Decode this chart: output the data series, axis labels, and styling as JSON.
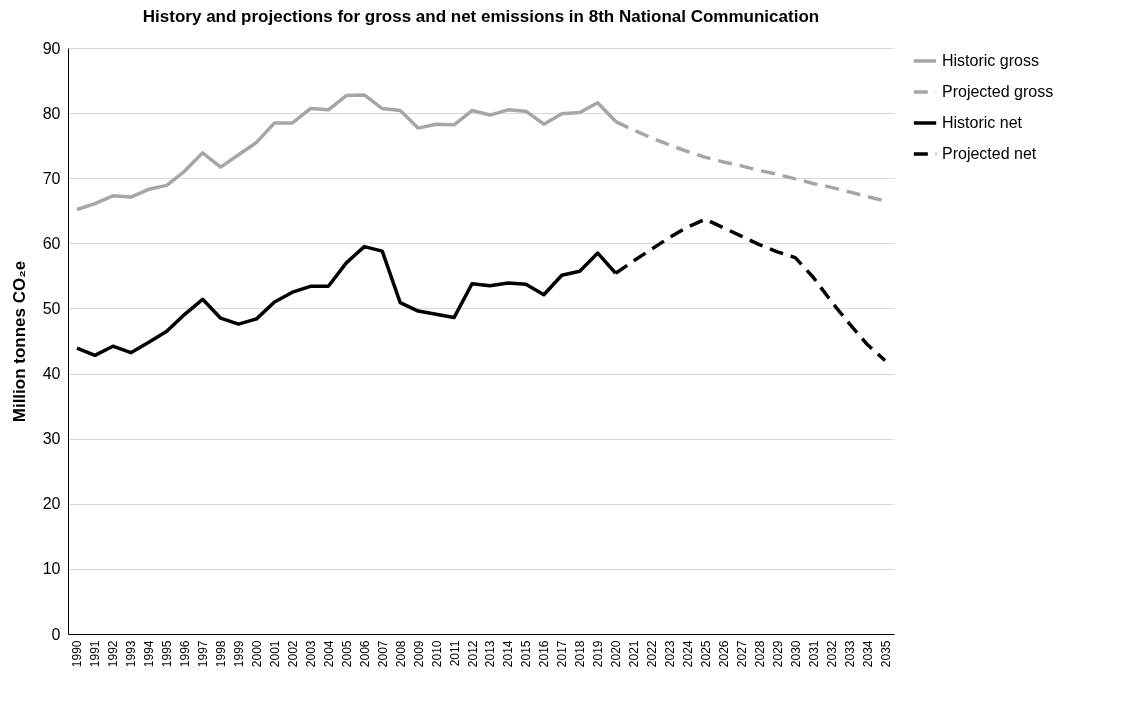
{
  "chart_data": {
    "type": "line",
    "title": "History and projections for gross and net emissions in 8th National Communication",
    "ylabel": "Million tonnes CO₂e",
    "categories": [
      "1990",
      "1991",
      "1992",
      "1993",
      "1994",
      "1995",
      "1996",
      "1997",
      "1998",
      "1999",
      "2000",
      "2001",
      "2002",
      "2003",
      "2004",
      "2005",
      "2006",
      "2007",
      "2008",
      "2009",
      "2010",
      "2011",
      "2012",
      "2013",
      "2014",
      "2015",
      "2016",
      "2017",
      "2018",
      "2019",
      "2020",
      "2021",
      "2022",
      "2023",
      "2024",
      "2025",
      "2026",
      "2027",
      "2028",
      "2029",
      "2030",
      "2031",
      "2032",
      "2033",
      "2034",
      "2035"
    ],
    "series": [
      {
        "name": "Historic gross",
        "color": "#a6a6a6",
        "line_style": "solid",
        "values": [
          65.2,
          66.1,
          67.3,
          67.1,
          68.3,
          68.9,
          71.1,
          73.9,
          71.7,
          73.6,
          75.5,
          78.5,
          78.5,
          80.7,
          80.5,
          82.7,
          82.8,
          80.7,
          80.4,
          77.7,
          78.3,
          78.2,
          80.4,
          79.7,
          80.5,
          80.3,
          78.3,
          79.9,
          80.1,
          81.6,
          78.7,
          null,
          null,
          null,
          null,
          null,
          null,
          null,
          null,
          null,
          null,
          null,
          null,
          null,
          null,
          null
        ]
      },
      {
        "name": "Projected gross",
        "color": "#a6a6a6",
        "line_style": "dashed",
        "values": [
          null,
          null,
          null,
          null,
          null,
          null,
          null,
          null,
          null,
          null,
          null,
          null,
          null,
          null,
          null,
          null,
          null,
          null,
          null,
          null,
          null,
          null,
          null,
          null,
          null,
          null,
          null,
          null,
          null,
          null,
          78.7,
          77.4,
          76.2,
          75.1,
          74.1,
          73.2,
          72.5,
          71.9,
          71.2,
          70.6,
          69.9,
          69.2,
          68.6,
          67.9,
          67.2,
          66.5
        ]
      },
      {
        "name": "Historic net",
        "color": "#000000",
        "line_style": "solid",
        "values": [
          43.9,
          42.8,
          44.2,
          43.2,
          44.8,
          46.5,
          49.1,
          51.4,
          48.5,
          47.6,
          48.4,
          51.0,
          52.5,
          53.4,
          53.4,
          57.0,
          59.5,
          58.8,
          50.9,
          49.6,
          49.1,
          48.6,
          53.8,
          53.5,
          53.9,
          53.7,
          52.1,
          55.1,
          55.7,
          58.5,
          55.4,
          null,
          null,
          null,
          null,
          null,
          null,
          null,
          null,
          null,
          null,
          null,
          null,
          null,
          null,
          null
        ]
      },
      {
        "name": "Projected net",
        "color": "#000000",
        "line_style": "dashed",
        "values": [
          null,
          null,
          null,
          null,
          null,
          null,
          null,
          null,
          null,
          null,
          null,
          null,
          null,
          null,
          null,
          null,
          null,
          null,
          null,
          null,
          null,
          null,
          null,
          null,
          null,
          null,
          null,
          null,
          null,
          null,
          55.4,
          57.3,
          59.1,
          60.9,
          62.5,
          63.7,
          62.4,
          61.1,
          59.8,
          58.7,
          57.8,
          54.8,
          51.1,
          47.7,
          44.5,
          42.0
        ]
      }
    ],
    "ylim": [
      0,
      90
    ],
    "yticks": [
      0,
      10,
      20,
      30,
      40,
      50,
      60,
      70,
      80,
      90
    ],
    "grid": "y",
    "legend": "right",
    "marker": "none"
  }
}
